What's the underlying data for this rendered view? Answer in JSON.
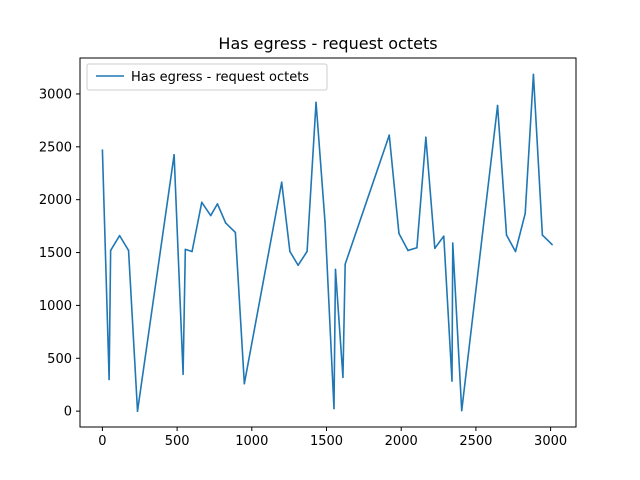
{
  "chart_data": {
    "type": "line",
    "title": "Has egress - request octets",
    "xlabel": "",
    "ylabel": "",
    "xlim": [
      -150,
      3170
    ],
    "ylim": [
      -150,
      3340
    ],
    "xticks": [
      0,
      500,
      1000,
      1500,
      2000,
      2500,
      3000
    ],
    "yticks": [
      0,
      500,
      1000,
      1500,
      2000,
      2500,
      3000
    ],
    "xtick_labels": [
      "0",
      "500",
      "1000",
      "1500",
      "2000",
      "2500",
      "3000"
    ],
    "ytick_labels": [
      "0",
      "500",
      "1000",
      "1500",
      "2000",
      "2500",
      "3000"
    ],
    "grid": false,
    "legend_position": "upper-left",
    "series": [
      {
        "name": "Has egress - request octets",
        "color": "#1f77b4",
        "points": [
          [
            0,
            2470
          ],
          [
            45,
            300
          ],
          [
            55,
            1520
          ],
          [
            115,
            1660
          ],
          [
            175,
            1520
          ],
          [
            235,
            0
          ],
          [
            480,
            2425
          ],
          [
            540,
            350
          ],
          [
            555,
            1530
          ],
          [
            600,
            1510
          ],
          [
            665,
            1975
          ],
          [
            725,
            1850
          ],
          [
            770,
            1960
          ],
          [
            825,
            1780
          ],
          [
            890,
            1690
          ],
          [
            950,
            260
          ],
          [
            1200,
            2165
          ],
          [
            1255,
            1510
          ],
          [
            1310,
            1380
          ],
          [
            1370,
            1510
          ],
          [
            1430,
            2920
          ],
          [
            1490,
            1790
          ],
          [
            1550,
            25
          ],
          [
            1560,
            1340
          ],
          [
            1610,
            320
          ],
          [
            1625,
            1390
          ],
          [
            1920,
            2610
          ],
          [
            1985,
            1680
          ],
          [
            2045,
            1520
          ],
          [
            2105,
            1545
          ],
          [
            2165,
            2590
          ],
          [
            2225,
            1540
          ],
          [
            2285,
            1655
          ],
          [
            2340,
            285
          ],
          [
            2345,
            1590
          ],
          [
            2405,
            5
          ],
          [
            2645,
            2890
          ],
          [
            2705,
            1665
          ],
          [
            2765,
            1510
          ],
          [
            2830,
            1870
          ],
          [
            2885,
            3185
          ],
          [
            2945,
            1665
          ],
          [
            3010,
            1575
          ]
        ]
      }
    ]
  }
}
